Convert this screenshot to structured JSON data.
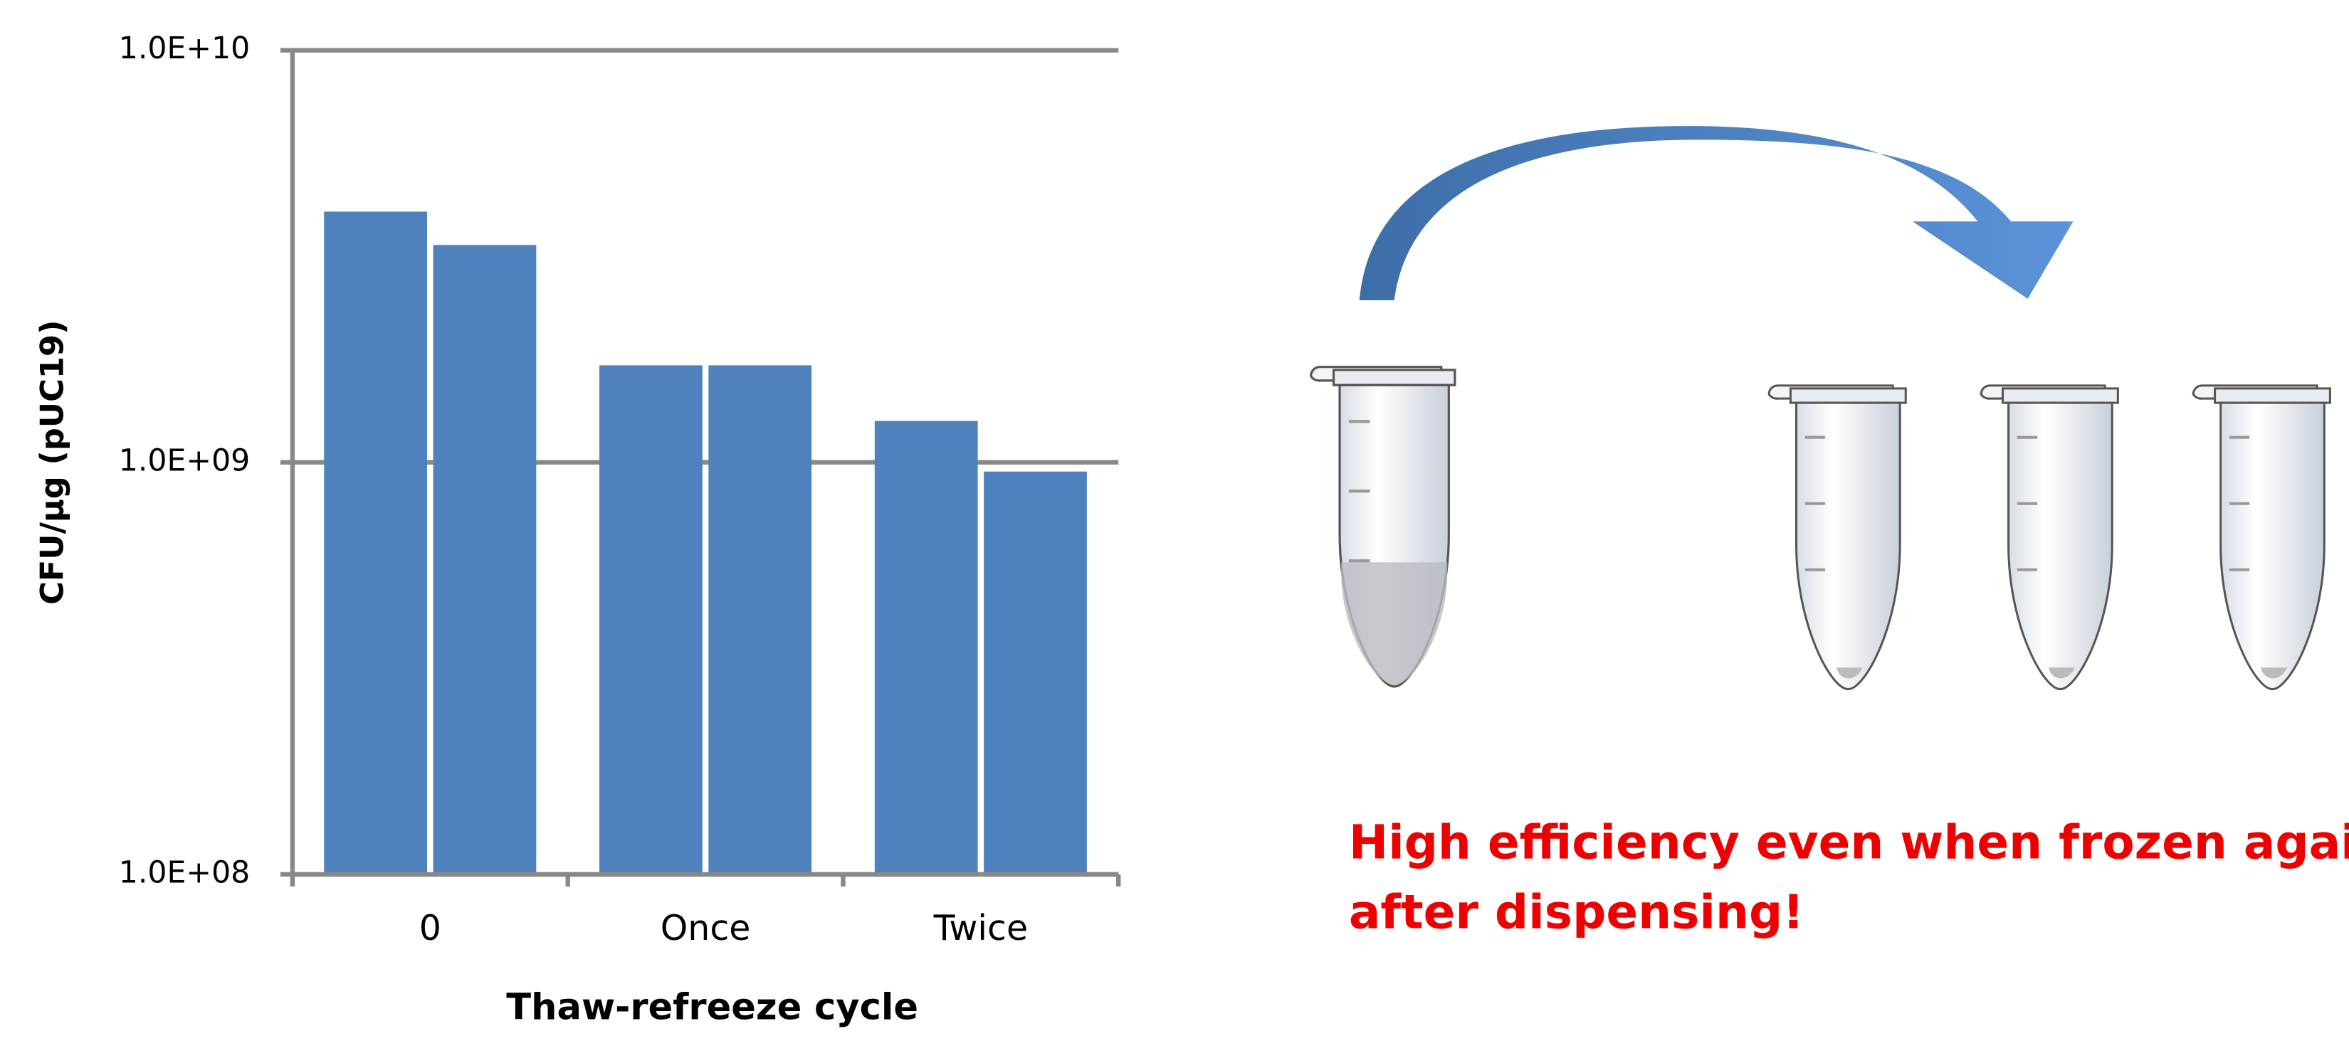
{
  "chart_data": {
    "type": "bar",
    "y_label": "CFU/µg (pUC19)",
    "x_label": "Thaw-refreeze cycle",
    "categories": [
      "0",
      "Once",
      "Twice"
    ],
    "series": [
      {
        "color": "#4f81bd",
        "values": [
          4060000000,
          1720000000,
          1260000000
        ]
      },
      {
        "color": "#4f81bd",
        "values": [
          3370000000,
          1720000000,
          950000000
        ]
      }
    ],
    "log_scale": true,
    "ylim": [
      100000000,
      10000000000
    ],
    "yticks": [
      {
        "value": 100000000,
        "label": "1.0E+08"
      },
      {
        "value": 1000000000,
        "label": "1.0E+09"
      },
      {
        "value": 10000000000,
        "label": "1.0E+10"
      }
    ],
    "grid": true,
    "annotation": [
      "High efficiency even when frozen again",
      "after dispensing!"
    ]
  }
}
